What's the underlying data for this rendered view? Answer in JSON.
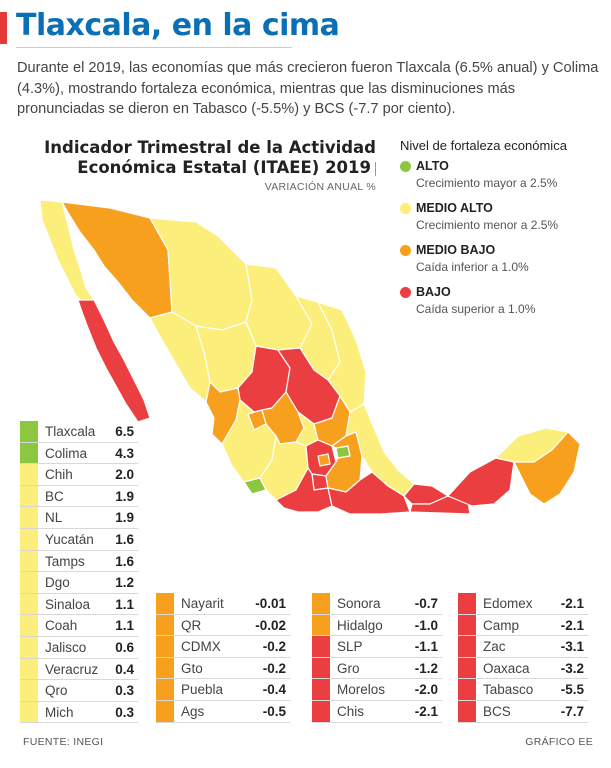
{
  "headline": "Tlaxcala, en la cima",
  "intro": "Durante el 2019, las economías que más crecieron fueron Tlaxcala (6.5% anual) y Colima (4.3%), mostrando fortaleza económica, mientras que las disminuciones más pronunciadas se dieron en Tabasco (-5.5%) y BCS (-7.7 por ciento).",
  "colors": {
    "alto": "#8dc63f",
    "medio_alto": "#fbee7a",
    "medio_bajo": "#f7a01d",
    "bajo": "#ea3e41",
    "headline": "#0a6fb5",
    "accent": "#e53935"
  },
  "legend": {
    "title": "Nivel de fortaleza económica",
    "items": [
      {
        "key": "alto",
        "name": "ALTO",
        "desc": "Crecimiento mayor a 2.5%"
      },
      {
        "key": "medio_alto",
        "name": "MEDIO ALTO",
        "desc": "Crecimiento menor a 2.5%"
      },
      {
        "key": "medio_bajo",
        "name": "MEDIO BAJO",
        "desc": "Caída inferior a 1.0%"
      },
      {
        "key": "bajo",
        "name": "BAJO",
        "desc": "Caída superior a 1.0%"
      }
    ]
  },
  "footer": {
    "source": "FUENTE: INEGI",
    "credit": "GRÁFICO EE"
  },
  "chart_data": {
    "type": "table",
    "title": "Indicador Trimestral de la Actividad Económica Estatal (ITAEE) 2019",
    "subtitle": "VARIACIÓN ANUAL %",
    "states": [
      {
        "name": "Tlaxcala",
        "value": "6.5",
        "level": "alto"
      },
      {
        "name": "Colima",
        "value": "4.3",
        "level": "alto"
      },
      {
        "name": "Chih",
        "value": "2.0",
        "level": "medio_alto"
      },
      {
        "name": "BC",
        "value": "1.9",
        "level": "medio_alto"
      },
      {
        "name": "NL",
        "value": "1.9",
        "level": "medio_alto"
      },
      {
        "name": "Yucatán",
        "value": "1.6",
        "level": "medio_alto"
      },
      {
        "name": "Tamps",
        "value": "1.6",
        "level": "medio_alto"
      },
      {
        "name": "Dgo",
        "value": "1.2",
        "level": "medio_alto"
      },
      {
        "name": "Sinaloa",
        "value": "1.1",
        "level": "medio_alto"
      },
      {
        "name": "Coah",
        "value": "1.1",
        "level": "medio_alto"
      },
      {
        "name": "Jalisco",
        "value": "0.6",
        "level": "medio_alto"
      },
      {
        "name": "Veracruz",
        "value": "0.4",
        "level": "medio_alto"
      },
      {
        "name": "Qro",
        "value": "0.3",
        "level": "medio_alto"
      },
      {
        "name": "Mich",
        "value": "0.3",
        "level": "medio_alto"
      },
      {
        "name": "Nayarit",
        "value": "-0.01",
        "level": "medio_bajo"
      },
      {
        "name": "QR",
        "value": "-0.02",
        "level": "medio_bajo"
      },
      {
        "name": "CDMX",
        "value": "-0.2",
        "level": "medio_bajo"
      },
      {
        "name": "Gto",
        "value": "-0.2",
        "level": "medio_bajo"
      },
      {
        "name": "Puebla",
        "value": "-0.4",
        "level": "medio_bajo"
      },
      {
        "name": "Ags",
        "value": "-0.5",
        "level": "medio_bajo"
      },
      {
        "name": "Sonora",
        "value": "-0.7",
        "level": "medio_bajo"
      },
      {
        "name": "Hidalgo",
        "value": "-1.0",
        "level": "medio_bajo"
      },
      {
        "name": "SLP",
        "value": "-1.1",
        "level": "bajo"
      },
      {
        "name": "Gro",
        "value": "-1.2",
        "level": "bajo"
      },
      {
        "name": "Morelos",
        "value": "-2.0",
        "level": "bajo"
      },
      {
        "name": "Chis",
        "value": "-2.1",
        "level": "bajo"
      },
      {
        "name": "Edomex",
        "value": "-2.1",
        "level": "bajo"
      },
      {
        "name": "Camp",
        "value": "-2.1",
        "level": "bajo"
      },
      {
        "name": "Zac",
        "value": "-3.1",
        "level": "bajo"
      },
      {
        "name": "Oaxaca",
        "value": "-3.2",
        "level": "bajo"
      },
      {
        "name": "Tabasco",
        "value": "-5.5",
        "level": "bajo"
      },
      {
        "name": "BCS",
        "value": "-7.7",
        "level": "bajo"
      }
    ]
  }
}
